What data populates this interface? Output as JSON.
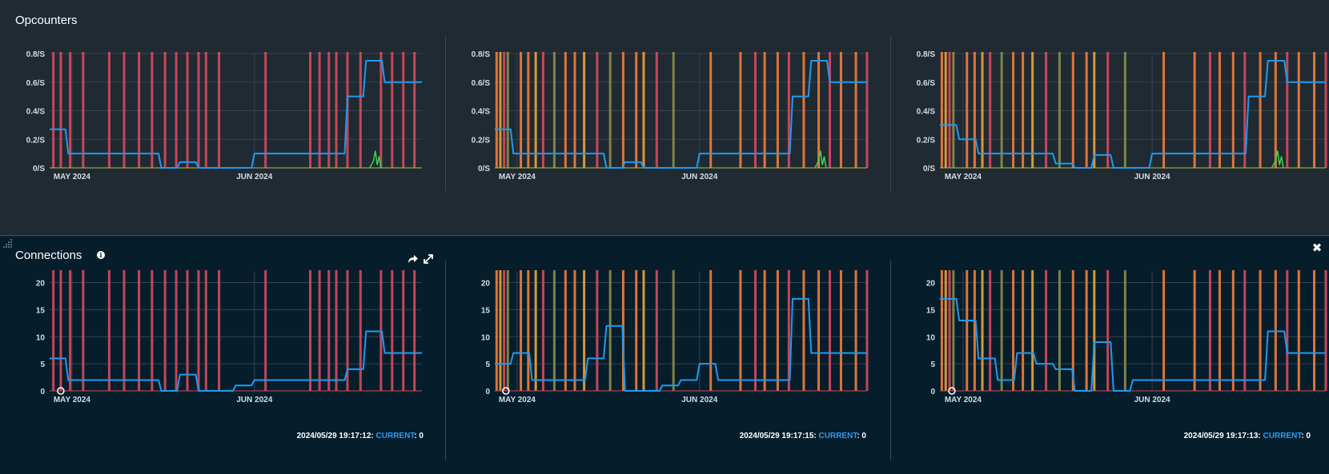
{
  "opcounters": {
    "title": "Opcounters",
    "y_ticks": [
      "0.8/S",
      "0.6/S",
      "0.4/S",
      "0.2/S",
      "0/S"
    ],
    "x_ticks": [
      "MAY 2024",
      "JUN 2024"
    ]
  },
  "connections": {
    "title": "Connections",
    "y_ticks": [
      "20",
      "15",
      "10",
      "5",
      "0"
    ],
    "x_ticks": [
      "MAY 2024",
      "JUN 2024"
    ],
    "status": [
      {
        "timestamp": "2024/05/29 19:17:12:",
        "label": "CURRENT",
        "value": ": 0"
      },
      {
        "timestamp": "2024/05/29 19:17:15:",
        "label": "CURRENT",
        "value": ": 0"
      },
      {
        "timestamp": "2024/05/29 19:17:13:",
        "label": "CURRENT",
        "value": ": 0"
      }
    ]
  },
  "colors": {
    "line": "#1e9bf0",
    "event_red": "#d6495c",
    "event_orange": "#f07c3a",
    "event_yellow": "#e8a23a",
    "event_olive": "#8a8a4a",
    "green": "#3fd34a",
    "grid": "#34434d"
  },
  "icons": [
    "info-icon",
    "share-icon",
    "expand-icon",
    "close-icon",
    "resize-handle-icon"
  ],
  "chart_data": [
    {
      "type": "line",
      "title": "Opcounters",
      "ylim": [
        0,
        0.8
      ],
      "y_unit": "/S",
      "x_ticks": [
        "MAY 2024",
        "JUN 2024"
      ],
      "series": [
        {
          "values": [
            0.27,
            0.1,
            0.1,
            0.1,
            0.1,
            0.1,
            0,
            0.04,
            0,
            0,
            0,
            0.1,
            0.1,
            0.1,
            0.1,
            0.1,
            0.5,
            0.75,
            0.6,
            0.6,
            0.6
          ]
        }
      ]
    },
    {
      "type": "line",
      "title": "Opcounters",
      "ylim": [
        0,
        0.8
      ],
      "y_unit": "/S",
      "x_ticks": [
        "MAY 2024",
        "JUN 2024"
      ],
      "series": [
        {
          "values": [
            0.27,
            0.1,
            0.1,
            0.1,
            0.1,
            0.1,
            0,
            0.04,
            0,
            0,
            0,
            0.1,
            0.1,
            0.1,
            0.1,
            0.1,
            0.5,
            0.75,
            0.6,
            0.6,
            0.6
          ]
        }
      ]
    },
    {
      "type": "line",
      "title": "Opcounters",
      "ylim": [
        0,
        0.8
      ],
      "y_unit": "/S",
      "x_ticks": [
        "MAY 2024",
        "JUN 2024"
      ],
      "series": [
        {
          "values": [
            0.3,
            0.2,
            0.1,
            0.1,
            0.1,
            0.1,
            0.03,
            0,
            0.09,
            0,
            0,
            0.1,
            0.1,
            0.1,
            0.1,
            0.1,
            0.5,
            0.75,
            0.6,
            0.6,
            0.6
          ]
        }
      ]
    },
    {
      "type": "line",
      "title": "Connections",
      "ylim": [
        0,
        22
      ],
      "x_ticks": [
        "MAY 2024",
        "JUN 2024"
      ],
      "series": [
        {
          "values": [
            6,
            2,
            2,
            2,
            2,
            2,
            0,
            3,
            0,
            0,
            1,
            2,
            2,
            2,
            2,
            2,
            4,
            11,
            7,
            7,
            7
          ]
        }
      ]
    },
    {
      "type": "line",
      "title": "Connections",
      "ylim": [
        0,
        22
      ],
      "x_ticks": [
        "MAY 2024",
        "JUN 2024"
      ],
      "series": [
        {
          "values": [
            5,
            7,
            2,
            2,
            2,
            6,
            12,
            0,
            0,
            1,
            2,
            5,
            2,
            2,
            2,
            2,
            17,
            7,
            7,
            7,
            7
          ]
        }
      ]
    },
    {
      "type": "line",
      "title": "Connections",
      "ylim": [
        0,
        22
      ],
      "x_ticks": [
        "MAY 2024",
        "JUN 2024"
      ],
      "series": [
        {
          "values": [
            17,
            13,
            6,
            2,
            7,
            5,
            4,
            0,
            9,
            0,
            2,
            2,
            2,
            2,
            2,
            2,
            2,
            11,
            7,
            7,
            7
          ]
        }
      ]
    }
  ]
}
